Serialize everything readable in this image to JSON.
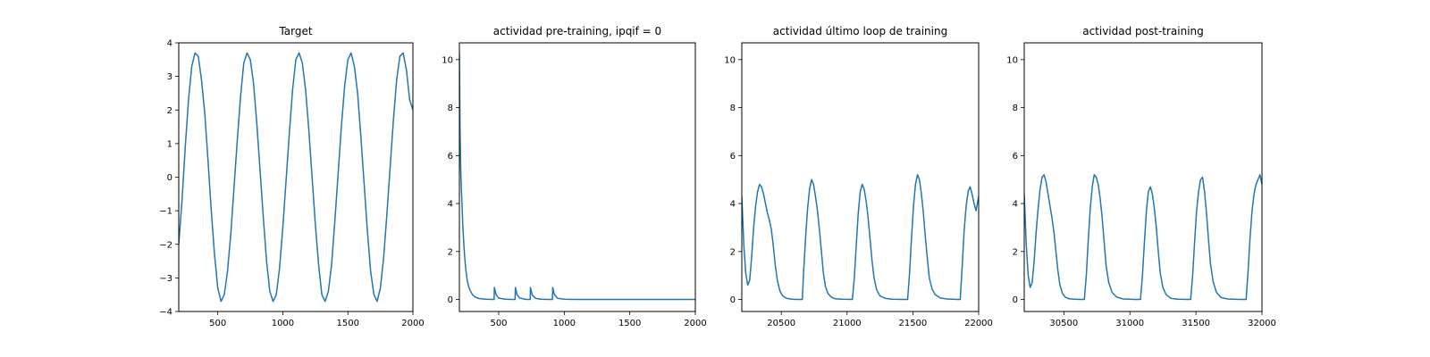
{
  "colors": {
    "series": "#1f77b4",
    "axes": "#000000",
    "background": "#ffffff"
  },
  "chart_data": [
    {
      "type": "line",
      "title": "Target",
      "xlabel": "",
      "ylabel": "",
      "xlim": [
        200,
        2000
      ],
      "ylim": [
        -4,
        4
      ],
      "xticks": [
        500,
        1000,
        1500,
        2000
      ],
      "yticks": [
        -4,
        -3,
        -2,
        -1,
        0,
        1,
        2,
        3,
        4
      ],
      "grid": false,
      "series": [
        {
          "x": [
            200,
            225,
            250,
            275,
            300,
            325,
            350,
            375,
            400,
            425,
            450,
            475,
            500,
            525,
            550,
            575,
            600,
            625,
            650,
            675,
            700,
            725,
            750,
            775,
            800,
            825,
            850,
            875,
            900,
            925,
            950,
            975,
            1000,
            1025,
            1050,
            1075,
            1100,
            1125,
            1150,
            1175,
            1200,
            1225,
            1250,
            1275,
            1300,
            1325,
            1350,
            1375,
            1400,
            1425,
            1450,
            1475,
            1500,
            1525,
            1550,
            1575,
            1600,
            1625,
            1650,
            1675,
            1700,
            1725,
            1750,
            1775,
            1800,
            1825,
            1850,
            1875,
            1900,
            1925,
            1950,
            1975,
            2000
          ],
          "y": [
            -2.0,
            -0.7,
            0.9,
            2.3,
            3.3,
            3.7,
            3.6,
            2.9,
            1.9,
            0.5,
            -1.0,
            -2.3,
            -3.3,
            -3.7,
            -3.5,
            -2.8,
            -1.7,
            -0.3,
            1.1,
            2.4,
            3.4,
            3.7,
            3.5,
            2.8,
            1.6,
            0.2,
            -1.2,
            -2.5,
            -3.4,
            -3.7,
            -3.5,
            -2.7,
            -1.5,
            -0.1,
            1.3,
            2.6,
            3.5,
            3.7,
            3.4,
            2.6,
            1.4,
            0.0,
            -1.4,
            -2.6,
            -3.5,
            -3.7,
            -3.4,
            -2.6,
            -1.3,
            0.1,
            1.5,
            2.7,
            3.5,
            3.7,
            3.3,
            2.5,
            1.2,
            -0.2,
            -1.6,
            -2.8,
            -3.5,
            -3.7,
            -3.3,
            -2.4,
            -1.1,
            0.3,
            1.7,
            2.9,
            3.6,
            3.7,
            3.2,
            2.3,
            2.0
          ]
        }
      ]
    },
    {
      "type": "line",
      "title": "actividad pre-training, ipqif = 0",
      "xlabel": "",
      "ylabel": "",
      "xlim": [
        200,
        2000
      ],
      "ylim": [
        -0.5,
        10.7
      ],
      "xticks": [
        500,
        1000,
        1500,
        2000
      ],
      "yticks": [
        0,
        2,
        4,
        6,
        8,
        10
      ],
      "grid": false,
      "series": [
        {
          "x": [
            200,
            202,
            205,
            210,
            215,
            220,
            225,
            230,
            235,
            240,
            250,
            260,
            270,
            280,
            300,
            320,
            350,
            400,
            450,
            465,
            467,
            480,
            500,
            550,
            600,
            625,
            627,
            640,
            660,
            700,
            720,
            740,
            742,
            755,
            780,
            820,
            880,
            900,
            910,
            912,
            925,
            950,
            1000,
            1100,
            1200,
            1400,
            1600,
            1800,
            2000
          ],
          "y": [
            10.3,
            9.0,
            7.0,
            5.5,
            4.6,
            4.0,
            3.2,
            2.7,
            2.2,
            1.8,
            1.2,
            0.8,
            0.55,
            0.4,
            0.2,
            0.1,
            0.04,
            0.01,
            0.0,
            0.0,
            0.5,
            0.2,
            0.06,
            0.01,
            0.0,
            0.0,
            0.5,
            0.2,
            0.06,
            0.01,
            0.0,
            0.0,
            0.5,
            0.2,
            0.05,
            0.01,
            0.0,
            0.0,
            0.0,
            0.5,
            0.2,
            0.05,
            0.01,
            0.0,
            0.0,
            0.0,
            0.0,
            0.0,
            0.0
          ]
        }
      ]
    },
    {
      "type": "line",
      "title": "actividad último loop de training",
      "xlabel": "",
      "ylabel": "",
      "xlim": [
        20200,
        22000
      ],
      "ylim": [
        -0.5,
        10.7
      ],
      "xticks": [
        20500,
        21000,
        21500,
        22000
      ],
      "yticks": [
        0,
        2,
        4,
        6,
        8,
        10
      ],
      "grid": false,
      "series": [
        {
          "x": [
            20200,
            20215,
            20230,
            20245,
            20260,
            20275,
            20290,
            20305,
            20320,
            20335,
            20350,
            20365,
            20380,
            20395,
            20410,
            20425,
            20440,
            20455,
            20470,
            20490,
            20510,
            20540,
            20580,
            20630,
            20660,
            20670,
            20685,
            20700,
            20715,
            20730,
            20745,
            20760,
            20775,
            20790,
            20805,
            20820,
            20835,
            20855,
            20880,
            20910,
            20960,
            21040,
            21055,
            21070,
            21085,
            21100,
            21115,
            21130,
            21145,
            21160,
            21175,
            21190,
            21205,
            21225,
            21250,
            21290,
            21340,
            21420,
            21460,
            21475,
            21490,
            21505,
            21520,
            21535,
            21550,
            21565,
            21580,
            21595,
            21610,
            21625,
            21645,
            21670,
            21710,
            21760,
            21840,
            21860,
            21875,
            21890,
            21905,
            21920,
            21935,
            21950,
            21965,
            21980,
            22000
          ],
          "y": [
            4.3,
            2.3,
            1.1,
            0.6,
            0.8,
            1.8,
            3.0,
            3.9,
            4.5,
            4.8,
            4.7,
            4.4,
            4.0,
            3.6,
            3.3,
            2.9,
            2.2,
            1.4,
            0.8,
            0.35,
            0.15,
            0.05,
            0.01,
            0.0,
            0.0,
            1.2,
            2.6,
            3.8,
            4.6,
            5.0,
            4.8,
            4.3,
            3.7,
            2.9,
            2.0,
            1.1,
            0.55,
            0.25,
            0.1,
            0.03,
            0.01,
            0.0,
            0.9,
            2.3,
            3.6,
            4.5,
            4.8,
            4.6,
            4.1,
            3.4,
            2.5,
            1.6,
            0.9,
            0.4,
            0.15,
            0.05,
            0.01,
            0.0,
            0.0,
            1.1,
            2.6,
            3.9,
            4.8,
            5.2,
            5.0,
            4.4,
            3.6,
            2.6,
            1.7,
            0.9,
            0.45,
            0.2,
            0.06,
            0.02,
            0.0,
            0.0,
            1.4,
            2.9,
            3.9,
            4.5,
            4.7,
            4.4,
            4.0,
            3.7,
            4.3
          ]
        }
      ]
    },
    {
      "type": "line",
      "title": "actividad post-training",
      "xlabel": "",
      "ylabel": "",
      "xlim": [
        30200,
        32000
      ],
      "ylim": [
        -0.5,
        10.7
      ],
      "xticks": [
        30500,
        31000,
        31500,
        32000
      ],
      "yticks": [
        0,
        2,
        4,
        6,
        8,
        10
      ],
      "grid": false,
      "series": [
        {
          "x": [
            30200,
            30215,
            30230,
            30245,
            30260,
            30275,
            30290,
            30305,
            30320,
            30335,
            30350,
            30365,
            30380,
            30395,
            30410,
            30425,
            30440,
            30455,
            30470,
            30490,
            30510,
            30540,
            30580,
            30630,
            30655,
            30670,
            30685,
            30700,
            30715,
            30730,
            30745,
            30760,
            30775,
            30790,
            30805,
            30820,
            30840,
            30865,
            30900,
            30950,
            31040,
            31080,
            31095,
            31110,
            31125,
            31140,
            31155,
            31170,
            31185,
            31200,
            31215,
            31230,
            31250,
            31275,
            31310,
            31360,
            31440,
            31460,
            31475,
            31490,
            31505,
            31520,
            31535,
            31550,
            31565,
            31580,
            31595,
            31610,
            31630,
            31655,
            31690,
            31740,
            31830,
            31880,
            31895,
            31910,
            31925,
            31940,
            31955,
            31970,
            31985,
            32000
          ],
          "y": [
            4.4,
            2.3,
            1.0,
            0.5,
            0.7,
            1.6,
            2.8,
            3.8,
            4.6,
            5.1,
            5.2,
            4.9,
            4.4,
            3.9,
            3.4,
            2.8,
            2.0,
            1.2,
            0.6,
            0.25,
            0.1,
            0.03,
            0.01,
            0.0,
            0.0,
            1.0,
            2.5,
            3.8,
            4.7,
            5.2,
            5.1,
            4.8,
            4.2,
            3.4,
            2.4,
            1.4,
            0.7,
            0.3,
            0.1,
            0.02,
            0.0,
            0.0,
            1.0,
            2.4,
            3.7,
            4.5,
            4.7,
            4.4,
            3.8,
            3.0,
            2.0,
            1.1,
            0.5,
            0.2,
            0.05,
            0.01,
            0.0,
            0.0,
            1.0,
            2.4,
            3.7,
            4.5,
            5.0,
            5.1,
            4.5,
            3.6,
            2.5,
            1.5,
            0.75,
            0.3,
            0.08,
            0.02,
            0.0,
            0.0,
            1.2,
            2.6,
            3.7,
            4.4,
            4.8,
            5.0,
            5.2,
            4.8
          ]
        }
      ]
    }
  ]
}
